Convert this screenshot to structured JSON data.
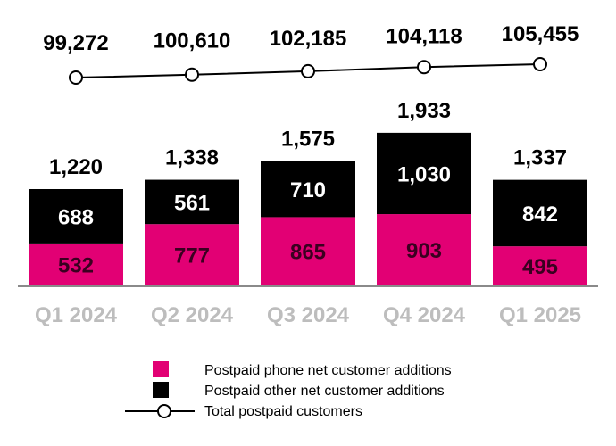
{
  "chart_data": {
    "type": "bar",
    "stacked": true,
    "categories": [
      "Q1 2024",
      "Q2 2024",
      "Q3 2024",
      "Q4 2024",
      "Q1 2025"
    ],
    "series": [
      {
        "name": "Postpaid phone net customer additions",
        "values": [
          532,
          777,
          865,
          903,
          495
        ],
        "color": "#E20074"
      },
      {
        "name": "Postpaid other net customer additions",
        "values": [
          688,
          561,
          710,
          1030,
          842
        ],
        "color": "#000000"
      }
    ],
    "totals": [
      1220,
      1338,
      1575,
      1933,
      1337
    ],
    "line_series": {
      "name": "Total postpaid customers",
      "values": [
        99272,
        100610,
        102185,
        104118,
        105455
      ],
      "color": "#000000"
    },
    "value_labels": {
      "phone": [
        "532",
        "777",
        "865",
        "903",
        "495"
      ],
      "other": [
        "688",
        "561",
        "710",
        "1,030",
        "842"
      ],
      "totals": [
        "1,220",
        "1,338",
        "1,575",
        "1,933",
        "1,337"
      ],
      "line": [
        "99,272",
        "100,610",
        "102,185",
        "104,118",
        "105,455"
      ]
    },
    "legend": {
      "position": "bottom",
      "items": [
        "Postpaid phone net customer additions",
        "Postpaid other net customer additions",
        "Total postpaid customers"
      ]
    },
    "grid": false,
    "category_label_color": "#bdbdbd"
  }
}
